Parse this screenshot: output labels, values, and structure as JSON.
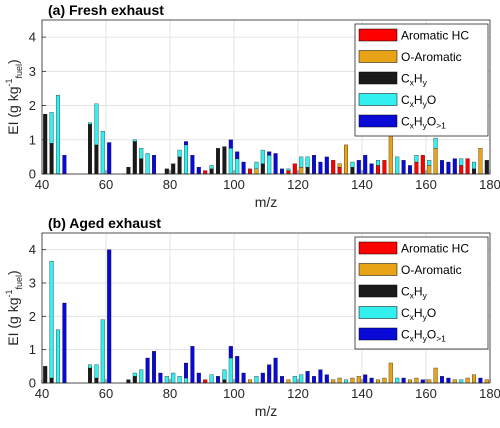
{
  "colors": {
    "aromatic_hc": "#ff0000",
    "o_aromatic": "#e8a317",
    "cxhy": "#1a1a1a",
    "cxhyo": "#33f0f0",
    "cxhyo_gt1": "#0a0ad8",
    "grid": "#dedede",
    "axis": "#262626"
  },
  "legend": {
    "items": [
      {
        "key": "aromatic_hc",
        "label": "Aromatic HC"
      },
      {
        "key": "o_aromatic",
        "label": "O-Aromatic"
      },
      {
        "key": "cxhy",
        "label": "C",
        "s1": "x",
        "mid": "H",
        "s2": "y"
      },
      {
        "key": "cxhyo",
        "label": "C",
        "s1": "x",
        "mid": "H",
        "s2": "y",
        "tail": "O"
      },
      {
        "key": "cxhyo_gt1",
        "label": "C",
        "s1": "x",
        "mid": "H",
        "s2": "y",
        "tail": "O",
        "s3": ">1"
      }
    ]
  },
  "chart_data": [
    {
      "type": "bar",
      "stacked": true,
      "title": "(a) Fresh exhaust",
      "xlabel": "m/z",
      "ylabel_parts": {
        "main": "EI (g kg",
        "sup": "-1",
        "sub": "fuel",
        "close": ")"
      },
      "xlim": [
        40,
        180
      ],
      "ylim": [
        0,
        4.5
      ],
      "xticks": [
        40,
        60,
        80,
        100,
        120,
        140,
        160,
        180
      ],
      "yticks": [
        0,
        1,
        2,
        3,
        4
      ],
      "grid": true,
      "legend_position": "top-right",
      "series_order": [
        "cxhy",
        "aromatic_hc",
        "o_aromatic",
        "cxhyo",
        "cxhyo_gt1"
      ],
      "bars": [
        {
          "x": 41,
          "cxhy": 1.75
        },
        {
          "x": 43,
          "cxhy": 0.9,
          "cxhyo": 0.9
        },
        {
          "x": 45,
          "cxhyo": 2.3
        },
        {
          "x": 47,
          "cxhyo_gt1": 0.55
        },
        {
          "x": 55,
          "cxhy": 1.45,
          "cxhyo": 0.05
        },
        {
          "x": 57,
          "cxhy": 0.85,
          "cxhyo": 1.2
        },
        {
          "x": 59,
          "cxhyo": 1.25
        },
        {
          "x": 61,
          "cxhyo_gt1": 0.92
        },
        {
          "x": 67,
          "cxhy": 0.2
        },
        {
          "x": 69,
          "cxhy": 0.95,
          "cxhyo": 0.05
        },
        {
          "x": 71,
          "cxhy": 0.45,
          "cxhyo": 0.3
        },
        {
          "x": 73,
          "cxhyo": 0.6
        },
        {
          "x": 75,
          "cxhyo_gt1": 0.55
        },
        {
          "x": 79,
          "cxhy": 0.15
        },
        {
          "x": 81,
          "cxhy": 0.3
        },
        {
          "x": 83,
          "cxhy": 0.5,
          "cxhyo": 0.2
        },
        {
          "x": 85,
          "cxhyo": 0.85,
          "cxhyo_gt1": 0.1
        },
        {
          "x": 87,
          "cxhyo_gt1": 0.55
        },
        {
          "x": 89,
          "cxhyo_gt1": 0.2
        },
        {
          "x": 91,
          "aromatic_hc": 0.1
        },
        {
          "x": 93,
          "cxhy": 0.15,
          "cxhyo": 0.1
        },
        {
          "x": 95,
          "cxhy": 0.75
        },
        {
          "x": 97,
          "cxhy": 0.8
        },
        {
          "x": 99,
          "cxhyo": 0.75,
          "cxhyo_gt1": 0.25
        },
        {
          "x": 101,
          "cxhyo": 0.45,
          "cxhyo_gt1": 0.2
        },
        {
          "x": 103,
          "cxhyo_gt1": 0.35
        },
        {
          "x": 105,
          "aromatic_hc": 0.15
        },
        {
          "x": 107,
          "o_aromatic": 0.15,
          "cxhyo": 0.2
        },
        {
          "x": 109,
          "cxhy": 0.3,
          "cxhyo": 0.4
        },
        {
          "x": 111,
          "cxhyo": 0.55,
          "cxhyo_gt1": 0.1
        },
        {
          "x": 113,
          "cxhyo_gt1": 0.6
        },
        {
          "x": 115,
          "cxhyo_gt1": 0.15
        },
        {
          "x": 117,
          "aromatic_hc": 0.1,
          "cxhyo": 0.05
        },
        {
          "x": 119,
          "aromatic_hc": 0.3
        },
        {
          "x": 121,
          "o_aromatic": 0.2,
          "cxhyo": 0.3
        },
        {
          "x": 123,
          "cxhy": 0.2,
          "cxhyo": 0.3
        },
        {
          "x": 125,
          "cxhyo_gt1": 0.55
        },
        {
          "x": 127,
          "cxhyo_gt1": 0.35
        },
        {
          "x": 129,
          "cxhyo_gt1": 0.5
        },
        {
          "x": 131,
          "aromatic_hc": 0.4
        },
        {
          "x": 133,
          "aromatic_hc": 0.2,
          "o_aromatic": 0.1
        },
        {
          "x": 135,
          "o_aromatic": 0.85
        },
        {
          "x": 137,
          "cxhy": 0.2,
          "cxhyo": 0.15
        },
        {
          "x": 139,
          "cxhyo_gt1": 0.4
        },
        {
          "x": 141,
          "cxhyo_gt1": 0.55
        },
        {
          "x": 143,
          "cxhyo_gt1": 0.3
        },
        {
          "x": 145,
          "aromatic_hc": 0.25,
          "cxhyo": 0.15
        },
        {
          "x": 147,
          "aromatic_hc": 0.4
        },
        {
          "x": 149,
          "o_aromatic": 1.3
        },
        {
          "x": 151,
          "cxhyo": 0.5
        },
        {
          "x": 153,
          "cxhyo_gt1": 0.4
        },
        {
          "x": 155,
          "cxhyo_gt1": 0.25
        },
        {
          "x": 157,
          "aromatic_hc": 0.35,
          "cxhyo": 0.2
        },
        {
          "x": 159,
          "aromatic_hc": 0.55
        },
        {
          "x": 161,
          "o_aromatic": 0.25,
          "cxhyo": 0.15
        },
        {
          "x": 163,
          "o_aromatic": 0.75,
          "cxhyo": 0.3
        },
        {
          "x": 165,
          "cxhyo_gt1": 0.4
        },
        {
          "x": 167,
          "cxhyo_gt1": 0.35
        },
        {
          "x": 169,
          "cxhyo_gt1": 0.45
        },
        {
          "x": 171,
          "aromatic_hc": 0.25,
          "cxhyo": 0.2
        },
        {
          "x": 173,
          "aromatic_hc": 0.45
        },
        {
          "x": 175,
          "cxhy": 0.15,
          "cxhyo": 0.2
        },
        {
          "x": 177,
          "o_aromatic": 0.75
        },
        {
          "x": 179,
          "cxhy": 0.4
        }
      ]
    },
    {
      "type": "bar",
      "stacked": true,
      "title": "(b) Aged exhaust",
      "xlabel": "m/z",
      "ylabel_parts": {
        "main": "EI (g kg",
        "sup": "-1",
        "sub": "fuel",
        "close": ")"
      },
      "xlim": [
        40,
        180
      ],
      "ylim": [
        0,
        4.5
      ],
      "xticks": [
        40,
        60,
        80,
        100,
        120,
        140,
        160,
        180
      ],
      "yticks": [
        0,
        1,
        2,
        3,
        4
      ],
      "grid": true,
      "legend_position": "top-right",
      "series_order": [
        "cxhy",
        "aromatic_hc",
        "o_aromatic",
        "cxhyo",
        "cxhyo_gt1"
      ],
      "bars": [
        {
          "x": 41,
          "cxhy": 0.5
        },
        {
          "x": 43,
          "cxhy": 0.15,
          "cxhyo": 3.5
        },
        {
          "x": 45,
          "cxhyo": 1.6
        },
        {
          "x": 47,
          "cxhyo_gt1": 2.4
        },
        {
          "x": 55,
          "cxhy": 0.45,
          "cxhyo": 0.1
        },
        {
          "x": 57,
          "cxhy": 0.15,
          "cxhyo": 0.4
        },
        {
          "x": 59,
          "cxhyo": 1.9
        },
        {
          "x": 61,
          "cxhyo_gt1": 4.0
        },
        {
          "x": 67,
          "cxhy": 0.1
        },
        {
          "x": 69,
          "cxhy": 0.2,
          "cxhyo": 0.1
        },
        {
          "x": 71,
          "cxhyo": 0.4
        },
        {
          "x": 73,
          "cxhyo_gt1": 0.75
        },
        {
          "x": 75,
          "cxhyo_gt1": 0.95
        },
        {
          "x": 77,
          "cxhyo_gt1": 0.3
        },
        {
          "x": 79,
          "cxhyo": 0.2
        },
        {
          "x": 81,
          "cxhyo": 0.3
        },
        {
          "x": 83,
          "cxhyo": 0.2
        },
        {
          "x": 85,
          "cxhyo": 0.15,
          "cxhyo_gt1": 0.45
        },
        {
          "x": 87,
          "cxhyo_gt1": 1.1
        },
        {
          "x": 89,
          "cxhyo_gt1": 0.3
        },
        {
          "x": 91,
          "aromatic_hc": 0.1
        },
        {
          "x": 93,
          "cxhyo": 0.25
        },
        {
          "x": 95,
          "cxhyo_gt1": 0.2
        },
        {
          "x": 97,
          "cxhy": 0.1,
          "cxhyo": 0.3
        },
        {
          "x": 99,
          "cxhyo": 0.75,
          "cxhyo_gt1": 0.35
        },
        {
          "x": 101,
          "cxhyo_gt1": 0.8
        },
        {
          "x": 103,
          "cxhyo_gt1": 0.3
        },
        {
          "x": 105,
          "o_aromatic": 0.1
        },
        {
          "x": 107,
          "cxhyo": 0.2
        },
        {
          "x": 109,
          "cxhyo_gt1": 0.3
        },
        {
          "x": 111,
          "cxhyo_gt1": 0.55
        },
        {
          "x": 113,
          "cxhyo_gt1": 0.75
        },
        {
          "x": 115,
          "cxhyo_gt1": 0.2
        },
        {
          "x": 117,
          "o_aromatic": 0.1
        },
        {
          "x": 119,
          "cxhyo": 0.2
        },
        {
          "x": 121,
          "cxhyo": 0.25
        },
        {
          "x": 123,
          "cxhyo_gt1": 0.35
        },
        {
          "x": 125,
          "cxhyo_gt1": 0.2
        },
        {
          "x": 127,
          "cxhyo_gt1": 0.4
        },
        {
          "x": 129,
          "cxhyo_gt1": 0.25
        },
        {
          "x": 131,
          "o_aromatic": 0.1
        },
        {
          "x": 133,
          "o_aromatic": 0.15
        },
        {
          "x": 135,
          "cxhyo": 0.1
        },
        {
          "x": 137,
          "o_aromatic": 0.15
        },
        {
          "x": 139,
          "o_aromatic": 0.2
        },
        {
          "x": 141,
          "cxhyo_gt1": 0.25
        },
        {
          "x": 143,
          "cxhyo_gt1": 0.15
        },
        {
          "x": 145,
          "o_aromatic": 0.1
        },
        {
          "x": 147,
          "o_aromatic": 0.15
        },
        {
          "x": 149,
          "o_aromatic": 0.6
        },
        {
          "x": 151,
          "cxhyo": 0.15
        },
        {
          "x": 153,
          "cxhyo_gt1": 0.15
        },
        {
          "x": 155,
          "o_aromatic": 0.1
        },
        {
          "x": 157,
          "o_aromatic": 0.15
        },
        {
          "x": 159,
          "cxhyo_gt1": 0.1
        },
        {
          "x": 161,
          "o_aromatic": 0.1
        },
        {
          "x": 163,
          "o_aromatic": 0.45
        },
        {
          "x": 165,
          "cxhyo_gt1": 0.2
        },
        {
          "x": 167,
          "cxhyo_gt1": 0.15
        },
        {
          "x": 169,
          "o_aromatic": 0.1
        },
        {
          "x": 171,
          "cxhyo": 0.1
        },
        {
          "x": 173,
          "o_aromatic": 0.15
        },
        {
          "x": 175,
          "o_aromatic": 0.25
        },
        {
          "x": 177,
          "cxhyo_gt1": 0.15
        },
        {
          "x": 179,
          "o_aromatic": 0.1
        }
      ]
    }
  ]
}
